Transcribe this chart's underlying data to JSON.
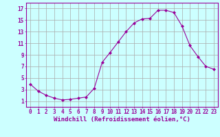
{
  "x": [
    0,
    1,
    2,
    3,
    4,
    5,
    6,
    7,
    8,
    9,
    10,
    11,
    12,
    13,
    14,
    15,
    16,
    17,
    18,
    19,
    20,
    21,
    22,
    23
  ],
  "y": [
    3.9,
    2.7,
    2.0,
    1.5,
    1.2,
    1.3,
    1.5,
    1.7,
    3.2,
    7.7,
    9.4,
    11.2,
    13.0,
    14.5,
    15.2,
    15.3,
    16.7,
    16.7,
    16.3,
    14.0,
    10.6,
    8.7,
    7.0,
    6.5
  ],
  "line_color": "#990099",
  "marker": "D",
  "marker_size": 2,
  "bg_color": "#ccffff",
  "grid_color": "#aaaaaa",
  "xlabel": "Windchill (Refroidissement éolien,°C)",
  "ylabel_ticks": [
    1,
    3,
    5,
    7,
    9,
    11,
    13,
    15,
    17
  ],
  "xlim": [
    -0.5,
    23.5
  ],
  "ylim": [
    0,
    18
  ],
  "xticks": [
    0,
    1,
    2,
    3,
    4,
    5,
    6,
    7,
    8,
    9,
    10,
    11,
    12,
    13,
    14,
    15,
    16,
    17,
    18,
    19,
    20,
    21,
    22,
    23
  ],
  "tick_label_color": "#990099",
  "tick_label_size": 5.5,
  "xlabel_size": 6.5,
  "spine_color": "#990099"
}
